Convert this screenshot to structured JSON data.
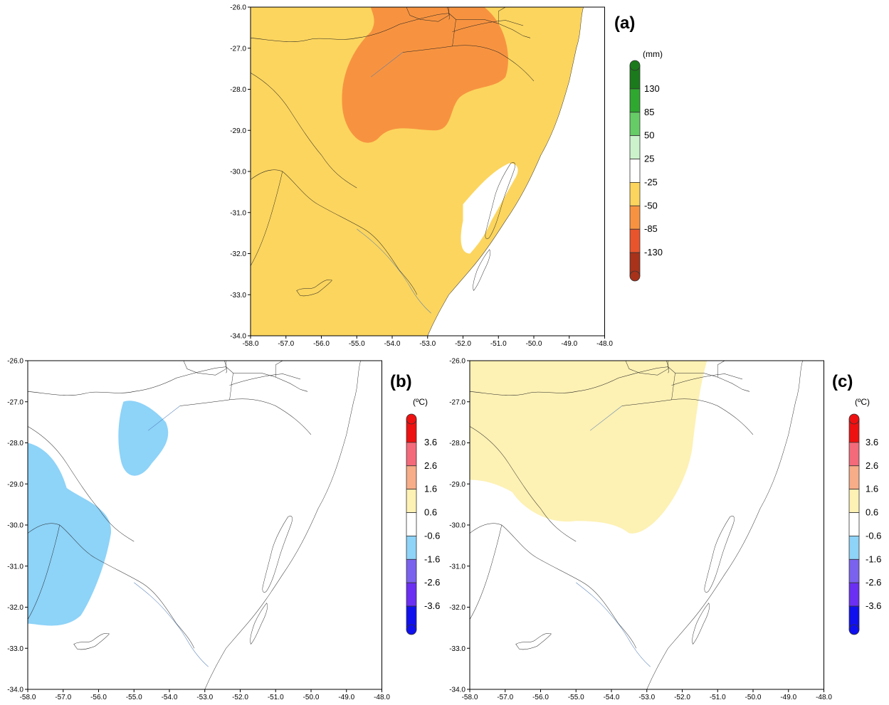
{
  "panels": [
    {
      "id": "a",
      "label": "(a)",
      "unit": "(mm)",
      "y_ticks": [
        "-26.0",
        "-27.0",
        "-28.0",
        "-29.0",
        "-30.0",
        "-31.0",
        "-32.0",
        "-33.0",
        "-34.0"
      ],
      "x_ticks": [
        "-58.0",
        "-57.0",
        "-56.0",
        "-55.0",
        "-54.0",
        "-53.0",
        "-52.0",
        "-51.0",
        "-50.0",
        "-49.0",
        "-48.0"
      ],
      "colorbar": {
        "colors": [
          "#1b7a1b",
          "#2ea82e",
          "#66cc66",
          "#ccf2cc",
          "#ffffff",
          "#fcd55e",
          "#f79340",
          "#e8542c",
          "#a8321a"
        ],
        "labels": [
          "130",
          "85",
          "50",
          "25",
          "-25",
          "-50",
          "-85",
          "-130"
        ]
      }
    },
    {
      "id": "b",
      "label": "(b)",
      "unit": "(ºC)",
      "y_ticks": [
        "-26.0",
        "-27.0",
        "-28.0",
        "-29.0",
        "-30.0",
        "-31.0",
        "-32.0",
        "-33.0",
        "-34.0"
      ],
      "x_ticks": [
        "-58.0",
        "-57.0",
        "-56.0",
        "-55.0",
        "-54.0",
        "-53.0",
        "-52.0",
        "-51.0",
        "-50.0",
        "-49.0",
        "-48.0"
      ],
      "colorbar": {
        "colors": [
          "#ee1111",
          "#f46a7a",
          "#f6ad88",
          "#fdf1b4",
          "#ffffff",
          "#8ed3f8",
          "#7b62ee",
          "#6a2ff2",
          "#1010ee"
        ],
        "labels": [
          "3.6",
          "2.6",
          "1.6",
          "0.6",
          "-0.6",
          "-1.6",
          "-2.6",
          "-3.6"
        ]
      }
    },
    {
      "id": "c",
      "label": "(c)",
      "unit": "(ºC)",
      "y_ticks": [
        "-26.0",
        "-27.0",
        "-28.0",
        "-29.0",
        "-30.0",
        "-31.0",
        "-32.0",
        "-33.0",
        "-34.0"
      ],
      "x_ticks": [
        "-58.0",
        "-57.0",
        "-56.0",
        "-55.0",
        "-54.0",
        "-53.0",
        "-52.0",
        "-51.0",
        "-50.0",
        "-49.0",
        "-48.0"
      ],
      "colorbar": {
        "colors": [
          "#ee1111",
          "#f46a7a",
          "#f6ad88",
          "#fdf1b4",
          "#ffffff",
          "#8ed3f8",
          "#7b62ee",
          "#6a2ff2",
          "#1010ee"
        ],
        "labels": [
          "3.6",
          "2.6",
          "1.6",
          "0.6",
          "-0.6",
          "-1.6",
          "-2.6",
          "-3.6"
        ]
      }
    }
  ],
  "fills": {
    "a_base": "#fcd55e",
    "a_anomaly": "#f79340",
    "b_anomaly": "#8ed3f8",
    "c_anomaly": "#fdf1b4",
    "lagoon": "#ffffff"
  }
}
